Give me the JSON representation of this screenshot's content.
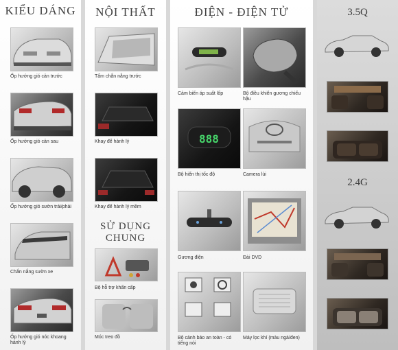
{
  "sections": {
    "exterior": {
      "title": "KIỂU DÁNG",
      "items": [
        "Ốp hướng gió cản trước",
        "Ốp hướng gió cản sau",
        "Ốp hướng gió sườn trái/phải",
        "Chắn nắng sườn xe",
        "Ốp hướng gió nóc khoang hành lý"
      ]
    },
    "interior": {
      "title": "NỘI THẤT",
      "items": [
        "Tấm chắn nắng trước",
        "Khay để hành lý",
        "Khay để hành lý mềm"
      ]
    },
    "general": {
      "title_line1": "SỬ DỤNG",
      "title_line2": "CHUNG",
      "items": [
        "Bộ hỗ trợ khẩn cấp",
        "Móc treo đồ"
      ]
    },
    "electronics": {
      "title": "ĐIỆN - ĐIỆN TỬ",
      "items": [
        "Cảm biến áp suất lốp",
        "Bộ điều khiển gương chiếu hậu",
        "Bộ hiển thị tốc độ",
        "Camera lùi",
        "Gương điện",
        "Đài DVD",
        "Bộ cảnh báo an toàn - có tiếng nói",
        "Máy lọc khí (màu ngà/đen)"
      ],
      "speed_display": "888"
    }
  },
  "variants": [
    "3.5Q",
    "2.4G"
  ],
  "colors": {
    "panel": "#f4f4f4",
    "title_text": "#3f3f3f",
    "right_panel": "#c8c8c8"
  }
}
